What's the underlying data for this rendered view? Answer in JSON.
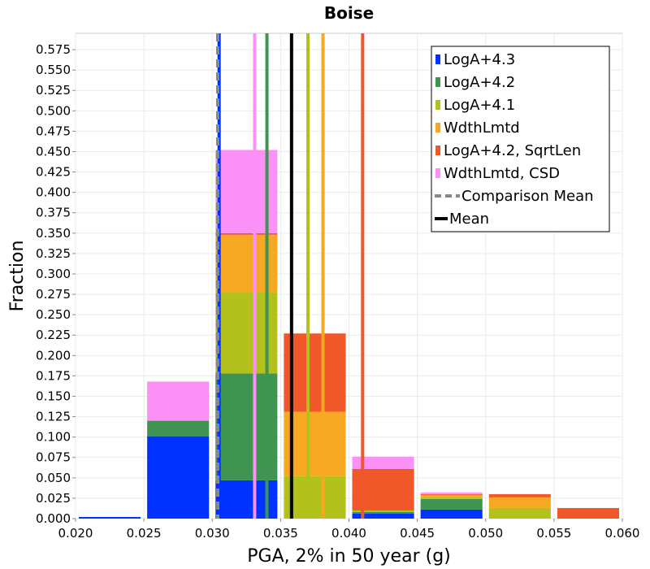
{
  "chart_data": {
    "type": "bar",
    "stacked": true,
    "title": "Boise",
    "xlabel": "PGA, 2% in 50 year (g)",
    "ylabel": "Fraction",
    "xlim": [
      0.02,
      0.06
    ],
    "ylim": [
      0,
      0.595
    ],
    "x_ticks": [
      "0.020",
      "0.025",
      "0.030",
      "0.035",
      "0.040",
      "0.045",
      "0.050",
      "0.055",
      "0.060"
    ],
    "y_ticks": [
      "0.000",
      "0.025",
      "0.050",
      "0.075",
      "0.100",
      "0.125",
      "0.150",
      "0.175",
      "0.200",
      "0.225",
      "0.250",
      "0.275",
      "0.300",
      "0.325",
      "0.350",
      "0.375",
      "0.400",
      "0.425",
      "0.450",
      "0.475",
      "0.500",
      "0.525",
      "0.550",
      "0.575"
    ],
    "grid": true,
    "legend_position": "top-right",
    "bins": [
      {
        "x0": 0.02,
        "x1": 0.025
      },
      {
        "x0": 0.025,
        "x1": 0.03
      },
      {
        "x0": 0.03,
        "x1": 0.035
      },
      {
        "x0": 0.035,
        "x1": 0.04
      },
      {
        "x0": 0.04,
        "x1": 0.045
      },
      {
        "x0": 0.045,
        "x1": 0.05
      },
      {
        "x0": 0.05,
        "x1": 0.055
      },
      {
        "x0": 0.055,
        "x1": 0.06
      }
    ],
    "series": [
      {
        "name": "LogA+4.3",
        "color": "#0033ff",
        "values": [
          0.002,
          0.101,
          0.047,
          0.0,
          0.006,
          0.011,
          0.0,
          0.0
        ],
        "mean": 0.0305
      },
      {
        "name": "LogA+4.2",
        "color": "#3f9451",
        "values": [
          0.0,
          0.019,
          0.131,
          0.0,
          0.002,
          0.013,
          0.0,
          0.0
        ],
        "mean": 0.034
      },
      {
        "name": "LogA+4.1",
        "color": "#b2c11c",
        "values": [
          0.0,
          0.0,
          0.099,
          0.052,
          0.002,
          0.002,
          0.013,
          0.0
        ],
        "mean": 0.037
      },
      {
        "name": "WdthLmtd",
        "color": "#f7a823",
        "values": [
          0.0,
          0.0,
          0.071,
          0.079,
          0.0,
          0.003,
          0.013,
          0.0
        ],
        "mean": 0.0381
      },
      {
        "name": "LogA+4.2, SqrtLen",
        "color": "#f0582a",
        "values": [
          0.0,
          0.0,
          0.002,
          0.096,
          0.051,
          0.001,
          0.004,
          0.013
        ],
        "mean": 0.041
      },
      {
        "name": "WdthLmtd, CSD",
        "color": "#fb91f7",
        "values": [
          0.0,
          0.048,
          0.102,
          0.0,
          0.015,
          0.002,
          0.0,
          0.0
        ],
        "mean": 0.0331
      }
    ],
    "comparison_mean": {
      "label": "Comparison Mean",
      "value": 0.0304,
      "color": "#888888"
    },
    "mean": {
      "label": "Mean",
      "value": 0.0358,
      "color": "#000000"
    }
  }
}
